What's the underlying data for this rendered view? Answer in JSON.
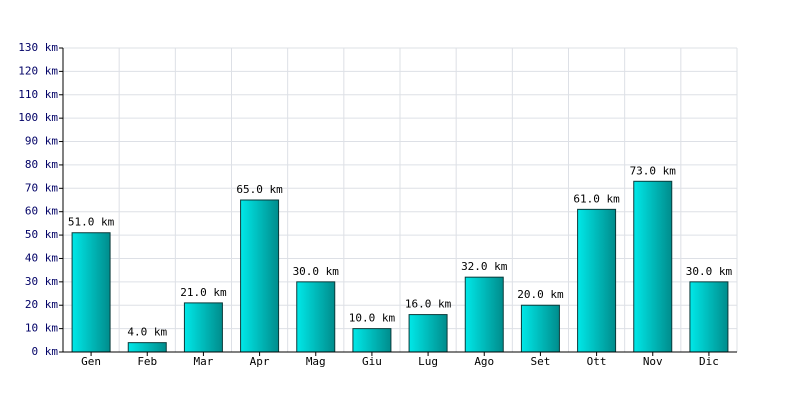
{
  "chart_data": {
    "type": "bar",
    "categories": [
      "Gen",
      "Feb",
      "Mar",
      "Apr",
      "Mag",
      "Giu",
      "Lug",
      "Ago",
      "Set",
      "Ott",
      "Nov",
      "Dic"
    ],
    "values": [
      51,
      4,
      21,
      65,
      30,
      10,
      16,
      32,
      20,
      61,
      73,
      30
    ],
    "value_labels": [
      "51.0 km",
      "4.0 km",
      "21.0 km",
      "65.0 km",
      "30.0 km",
      "10.0 km",
      "16.0 km",
      "32.0 km",
      "20.0 km",
      "61.0 km",
      "73.0 km",
      "30.0 km"
    ],
    "color": "#00e8e8",
    "gradient_end": "#008c8c",
    "ylim": [
      0,
      130
    ],
    "yticks": [
      {
        "value": 0,
        "label": "0 km"
      },
      {
        "value": 10,
        "label": "10 km"
      },
      {
        "value": 20,
        "label": "20 km"
      },
      {
        "value": 30,
        "label": "30 km"
      },
      {
        "value": 40,
        "label": "40 km"
      },
      {
        "value": 50,
        "label": "50 km"
      },
      {
        "value": 60,
        "label": "60 km"
      },
      {
        "value": 70,
        "label": "70 km"
      },
      {
        "value": 80,
        "label": "80 km"
      },
      {
        "value": 90,
        "label": "90 km"
      },
      {
        "value": 100,
        "label": "100 km"
      },
      {
        "value": 110,
        "label": "110 km"
      },
      {
        "value": 120,
        "label": "120 km"
      },
      {
        "value": 130,
        "label": "130 km"
      }
    ],
    "grid": true
  }
}
